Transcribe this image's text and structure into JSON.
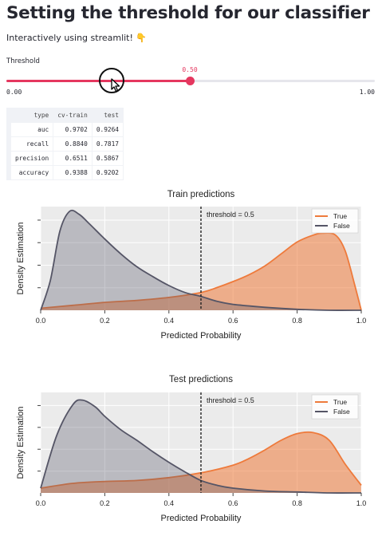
{
  "page": {
    "title": "Setting the threshold for our classifier",
    "subtitle": "Interactively using streamlit!",
    "subtitle_emoji": "👇"
  },
  "slider": {
    "label": "Threshold",
    "min_label": "0.00",
    "max_label": "1.00",
    "value_label": "0.50",
    "value": 0.5,
    "min": 0,
    "max": 1,
    "accent_color": "#e5375f"
  },
  "metrics_table": {
    "columns": [
      "type",
      "cv-train",
      "test"
    ],
    "rows": [
      [
        "auc",
        "0.9702",
        "0.9264"
      ],
      [
        "recall",
        "0.8840",
        "0.7817"
      ],
      [
        "precision",
        "0.6511",
        "0.5867"
      ],
      [
        "accuracy",
        "0.9388",
        "0.9202"
      ]
    ]
  },
  "chart_data": [
    {
      "type": "area",
      "title": "Train predictions",
      "xlabel": "Predicted Probability",
      "ylabel": "Density Estimation",
      "xlim": [
        0,
        1
      ],
      "xticks": [
        "0.0",
        "0.2",
        "0.4",
        "0.6",
        "0.8",
        "1.0"
      ],
      "grid": true,
      "legend_position": "top-right",
      "annotation": "threshold = 0.5",
      "threshold": 0.5,
      "series": [
        {
          "name": "True",
          "color": "#ee7a3b",
          "x": [
            0.0,
            0.1,
            0.2,
            0.3,
            0.4,
            0.5,
            0.55,
            0.6,
            0.65,
            0.7,
            0.75,
            0.8,
            0.85,
            0.88,
            0.92,
            0.95,
            0.98,
            1.0
          ],
          "y": [
            0.02,
            0.05,
            0.08,
            0.1,
            0.13,
            0.18,
            0.23,
            0.29,
            0.36,
            0.45,
            0.57,
            0.69,
            0.76,
            0.78,
            0.76,
            0.6,
            0.25,
            0.0
          ]
        },
        {
          "name": "False",
          "color": "#555566",
          "x": [
            0.0,
            0.03,
            0.06,
            0.09,
            0.12,
            0.15,
            0.2,
            0.25,
            0.3,
            0.35,
            0.4,
            0.45,
            0.5,
            0.55,
            0.6,
            0.7,
            0.8,
            0.9,
            1.0
          ],
          "y": [
            0.0,
            0.3,
            0.8,
            1.0,
            0.97,
            0.88,
            0.72,
            0.57,
            0.44,
            0.34,
            0.25,
            0.18,
            0.14,
            0.09,
            0.06,
            0.03,
            0.01,
            0.0,
            0.0
          ]
        }
      ]
    },
    {
      "type": "area",
      "title": "Test predictions",
      "xlabel": "Predicted Probability",
      "ylabel": "Density Estimation",
      "xlim": [
        0,
        1
      ],
      "xticks": [
        "0.0",
        "0.2",
        "0.4",
        "0.6",
        "0.8",
        "1.0"
      ],
      "grid": true,
      "legend_position": "top-right",
      "annotation": "threshold = 0.5",
      "threshold": 0.5,
      "series": [
        {
          "name": "True",
          "color": "#ee7a3b",
          "x": [
            0.0,
            0.1,
            0.2,
            0.3,
            0.4,
            0.5,
            0.6,
            0.65,
            0.7,
            0.75,
            0.8,
            0.85,
            0.9,
            0.95,
            1.0
          ],
          "y": [
            0.05,
            0.1,
            0.12,
            0.13,
            0.16,
            0.21,
            0.29,
            0.36,
            0.45,
            0.55,
            0.62,
            0.63,
            0.55,
            0.3,
            0.08
          ]
        },
        {
          "name": "False",
          "color": "#555566",
          "x": [
            0.0,
            0.05,
            0.1,
            0.13,
            0.17,
            0.2,
            0.25,
            0.3,
            0.35,
            0.4,
            0.45,
            0.5,
            0.55,
            0.6,
            0.7,
            0.8,
            0.9,
            1.0
          ],
          "y": [
            0.05,
            0.6,
            0.92,
            0.97,
            0.9,
            0.8,
            0.66,
            0.55,
            0.43,
            0.32,
            0.22,
            0.13,
            0.08,
            0.05,
            0.02,
            0.01,
            0.0,
            0.0
          ]
        }
      ]
    }
  ]
}
